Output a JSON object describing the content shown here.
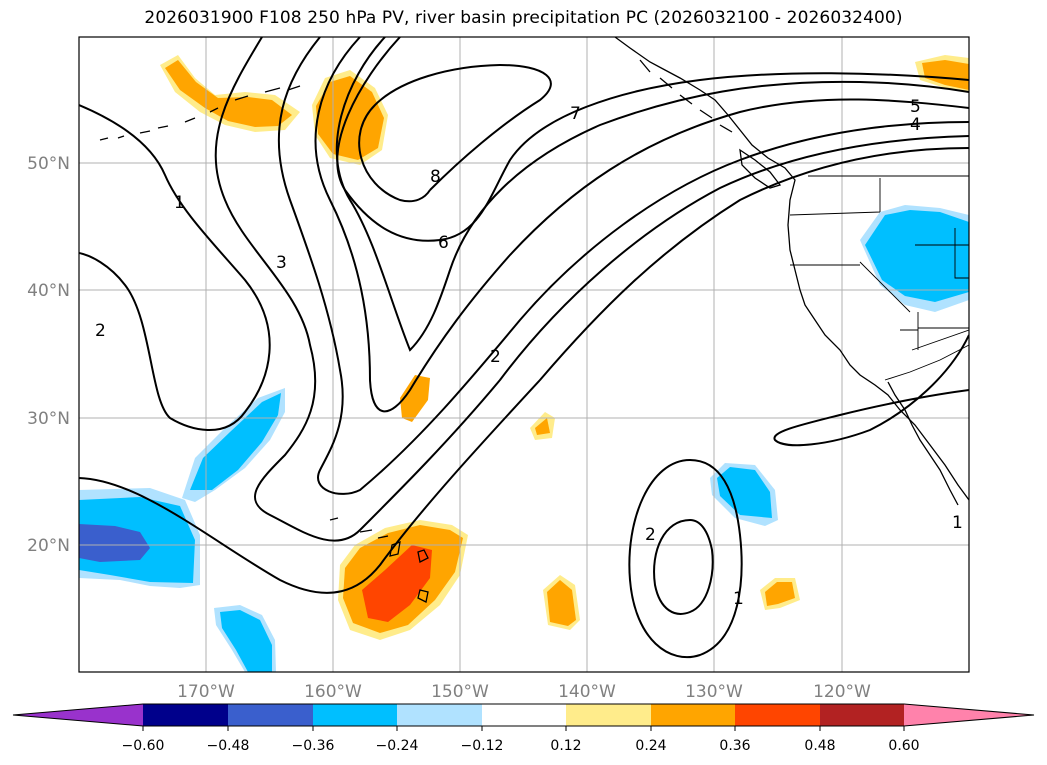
{
  "title": "2026031900 F108 250 hPa PV, river basin precipitation PC (2026032100 - 2026032400)",
  "map": {
    "lon_range": [
      -180,
      -110
    ],
    "lat_range": [
      10,
      60
    ],
    "lat_ticks": [
      "20°N",
      "30°N",
      "40°N",
      "50°N"
    ],
    "lon_ticks": [
      "170°W",
      "160°W",
      "150°W",
      "140°W",
      "130°W",
      "120°W"
    ],
    "tick_color": "#808080",
    "gridlines": true
  },
  "contour_labels": [
    {
      "text": "1",
      "name": "pv-label-1-west"
    },
    {
      "text": "2",
      "name": "pv-label-2-west"
    },
    {
      "text": "3",
      "name": "pv-label-3"
    },
    {
      "text": "8",
      "name": "pv-label-8"
    },
    {
      "text": "7",
      "name": "pv-label-7"
    },
    {
      "text": "6",
      "name": "pv-label-6"
    },
    {
      "text": "5",
      "name": "pv-label-5"
    },
    {
      "text": "4",
      "name": "pv-label-4"
    },
    {
      "text": "2",
      "name": "pv-label-2-central"
    },
    {
      "text": "2",
      "name": "pv-label-2-east"
    },
    {
      "text": "1",
      "name": "pv-label-1-east"
    },
    {
      "text": "1",
      "name": "pv-label-1-coast"
    }
  ],
  "colorbar": {
    "tick_labels": [
      "−0.60",
      "−0.48",
      "−0.36",
      "−0.24",
      "−0.12",
      "0.12",
      "0.24",
      "0.36",
      "0.48",
      "0.60"
    ],
    "colors": [
      "#9932cc",
      "#00008b",
      "#3a5fcd",
      "#00bfff",
      "#b0e2ff",
      "#ffffff",
      "#ffec8b",
      "#ffa500",
      "#ff4500",
      "#b22222",
      "#ff82ab"
    ],
    "extend": "both"
  },
  "fill_colors": {
    "neg_light": "#b0e2ff",
    "neg_mid": "#00bfff",
    "neg_strong": "#3a5fcd",
    "pos_light": "#ffec8b",
    "pos_mid": "#ffa500",
    "pos_strong": "#ff4500"
  }
}
